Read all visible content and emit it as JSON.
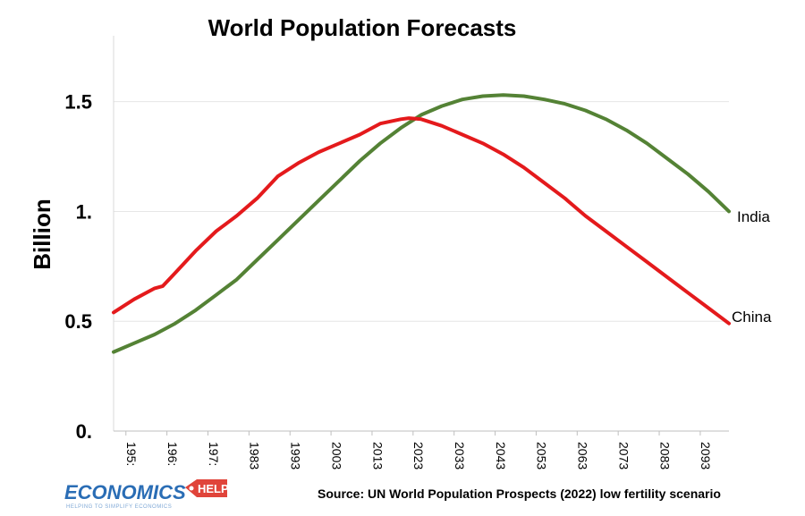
{
  "chart_data": {
    "type": "line",
    "title": "World Population Forecasts",
    "ylabel": "Billion",
    "xlabel": "",
    "xlim": [
      1950,
      2100
    ],
    "ylim": [
      0,
      1.8
    ],
    "yticks": [
      0,
      0.5,
      1.0,
      1.5
    ],
    "ytick_labels": [
      "0.",
      "0.5",
      "1.",
      "1.5"
    ],
    "xticks": [
      1953,
      1963,
      1973,
      1983,
      1993,
      2003,
      2013,
      2023,
      2033,
      2043,
      2053,
      2063,
      2073,
      2083,
      2093
    ],
    "xtick_labels": [
      "195:",
      "196:",
      "197:",
      "1983",
      "1993",
      "2003",
      "2013",
      "2023",
      "2033",
      "2043",
      "2053",
      "2063",
      "2073",
      "2083",
      "2093"
    ],
    "grid": true,
    "series": [
      {
        "name": "India",
        "color": "#548235",
        "x": [
          1950,
          1955,
          1960,
          1965,
          1970,
          1975,
          1980,
          1985,
          1990,
          1995,
          2000,
          2005,
          2010,
          2015,
          2020,
          2025,
          2030,
          2035,
          2040,
          2045,
          2050,
          2055,
          2060,
          2065,
          2070,
          2075,
          2080,
          2085,
          2090,
          2095,
          2100
        ],
        "values": [
          0.36,
          0.4,
          0.44,
          0.49,
          0.55,
          0.62,
          0.69,
          0.78,
          0.87,
          0.96,
          1.05,
          1.14,
          1.23,
          1.31,
          1.38,
          1.44,
          1.48,
          1.51,
          1.525,
          1.53,
          1.525,
          1.51,
          1.49,
          1.46,
          1.42,
          1.37,
          1.31,
          1.24,
          1.17,
          1.09,
          1.0
        ]
      },
      {
        "name": "China",
        "color": "#e41a1c",
        "x": [
          1950,
          1955,
          1960,
          1962,
          1965,
          1970,
          1975,
          1980,
          1985,
          1990,
          1995,
          2000,
          2005,
          2010,
          2015,
          2020,
          2022,
          2025,
          2030,
          2035,
          2040,
          2045,
          2050,
          2055,
          2060,
          2065,
          2070,
          2075,
          2080,
          2085,
          2090,
          2095,
          2100
        ],
        "values": [
          0.54,
          0.6,
          0.65,
          0.66,
          0.72,
          0.82,
          0.91,
          0.98,
          1.06,
          1.16,
          1.22,
          1.27,
          1.31,
          1.35,
          1.4,
          1.42,
          1.425,
          1.42,
          1.39,
          1.35,
          1.31,
          1.26,
          1.2,
          1.13,
          1.06,
          0.98,
          0.91,
          0.84,
          0.77,
          0.7,
          0.63,
          0.56,
          0.49
        ]
      }
    ],
    "annotations": [
      "India",
      "China"
    ]
  },
  "footer": {
    "source": "Source:  UN World Population Prospects (2022) low fertility scenario",
    "logo_main": "ECONOMICS",
    "logo_help": "HELP",
    "logo_tagline": "HELPING TO SIMPLIFY ECONOMICS"
  },
  "colors": {
    "india": "#548235",
    "china": "#e41a1c",
    "logo_blue": "#2a6db5",
    "logo_red": "#e0443a"
  }
}
